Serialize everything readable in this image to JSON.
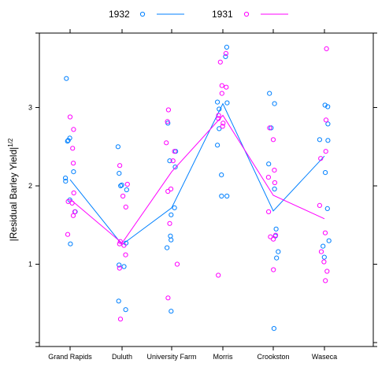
{
  "chart_data": {
    "type": "scatter",
    "ylabel": "|Residual Barley Yield|",
    "ylabel_superscript": "1/2",
    "categories": [
      "Grand Rapids",
      "Duluth",
      "University Farm",
      "Morris",
      "Crookston",
      "Waseca"
    ],
    "yticks": [
      "1",
      "2",
      "3"
    ],
    "ylim": [
      -0.05,
      3.95
    ],
    "legend_position": "top",
    "grid": false,
    "series": [
      {
        "name": "1932",
        "color": "#0080ff",
        "mean_line": [
          2.08,
          1.25,
          1.72,
          3.05,
          1.68,
          2.38
        ],
        "points": [
          [
            0,
            3.37
          ],
          [
            0,
            2.61
          ],
          [
            0,
            2.58
          ],
          [
            0,
            2.57
          ],
          [
            0,
            2.18
          ],
          [
            0,
            2.1
          ],
          [
            0,
            2.06
          ],
          [
            0,
            1.82
          ],
          [
            0,
            1.67
          ],
          [
            0,
            1.26
          ],
          [
            1,
            2.5
          ],
          [
            1,
            2.16
          ],
          [
            1,
            2.01
          ],
          [
            1,
            2.0
          ],
          [
            1,
            1.95
          ],
          [
            1,
            1.27
          ],
          [
            1,
            0.99
          ],
          [
            1,
            0.97
          ],
          [
            1,
            0.53
          ],
          [
            1,
            0.42
          ],
          [
            2,
            2.8
          ],
          [
            2,
            2.44
          ],
          [
            2,
            2.32
          ],
          [
            2,
            2.24
          ],
          [
            2,
            1.72
          ],
          [
            2,
            1.63
          ],
          [
            2,
            1.36
          ],
          [
            2,
            1.31
          ],
          [
            2,
            1.21
          ],
          [
            2,
            0.4
          ],
          [
            3,
            3.77
          ],
          [
            3,
            3.65
          ],
          [
            3,
            3.07
          ],
          [
            3,
            3.06
          ],
          [
            3,
            2.98
          ],
          [
            3,
            2.73
          ],
          [
            3,
            2.52
          ],
          [
            3,
            2.14
          ],
          [
            3,
            1.87
          ],
          [
            3,
            1.87
          ],
          [
            4,
            3.18
          ],
          [
            4,
            3.05
          ],
          [
            4,
            2.74
          ],
          [
            4,
            2.28
          ],
          [
            4,
            1.96
          ],
          [
            4,
            1.45
          ],
          [
            4,
            1.36
          ],
          [
            4,
            1.16
          ],
          [
            4,
            1.08
          ],
          [
            4,
            0.18
          ],
          [
            5,
            3.03
          ],
          [
            5,
            3.01
          ],
          [
            5,
            2.79
          ],
          [
            5,
            2.59
          ],
          [
            5,
            2.58
          ],
          [
            5,
            2.17
          ],
          [
            5,
            1.71
          ],
          [
            5,
            1.3
          ],
          [
            5,
            1.23
          ],
          [
            5,
            1.09
          ]
        ]
      },
      {
        "name": "1931",
        "color": "#ff00ff",
        "mean_line": [
          1.83,
          1.27,
          2.18,
          2.9,
          1.88,
          1.58
        ],
        "points": [
          [
            0,
            2.88
          ],
          [
            0,
            2.72
          ],
          [
            0,
            2.48
          ],
          [
            0,
            2.29
          ],
          [
            0,
            1.91
          ],
          [
            0,
            1.8
          ],
          [
            0,
            1.78
          ],
          [
            0,
            1.67
          ],
          [
            0,
            1.62
          ],
          [
            0,
            1.38
          ],
          [
            1,
            2.26
          ],
          [
            1,
            2.02
          ],
          [
            1,
            1.87
          ],
          [
            1,
            1.73
          ],
          [
            1,
            1.29
          ],
          [
            1,
            1.26
          ],
          [
            1,
            1.24
          ],
          [
            1,
            1.12
          ],
          [
            1,
            0.95
          ],
          [
            1,
            0.3
          ],
          [
            2,
            2.97
          ],
          [
            2,
            2.82
          ],
          [
            2,
            2.55
          ],
          [
            2,
            2.32
          ],
          [
            2,
            1.96
          ],
          [
            2,
            1.93
          ],
          [
            2,
            1.52
          ],
          [
            2,
            1.0
          ],
          [
            2,
            0.57
          ],
          [
            2,
            2.44
          ],
          [
            3,
            3.69
          ],
          [
            3,
            3.58
          ],
          [
            3,
            3.28
          ],
          [
            3,
            3.26
          ],
          [
            3,
            3.18
          ],
          [
            3,
            2.9
          ],
          [
            3,
            2.86
          ],
          [
            3,
            2.8
          ],
          [
            3,
            2.76
          ],
          [
            3,
            0.86
          ],
          [
            4,
            2.74
          ],
          [
            4,
            2.59
          ],
          [
            4,
            2.2
          ],
          [
            4,
            2.11
          ],
          [
            4,
            2.04
          ],
          [
            4,
            1.67
          ],
          [
            4,
            1.37
          ],
          [
            4,
            1.35
          ],
          [
            4,
            1.32
          ],
          [
            4,
            0.93
          ],
          [
            5,
            3.75
          ],
          [
            5,
            2.84
          ],
          [
            5,
            2.44
          ],
          [
            5,
            2.35
          ],
          [
            5,
            1.75
          ],
          [
            5,
            1.4
          ],
          [
            5,
            1.16
          ],
          [
            5,
            1.03
          ],
          [
            5,
            0.91
          ],
          [
            5,
            0.79
          ]
        ]
      }
    ]
  }
}
